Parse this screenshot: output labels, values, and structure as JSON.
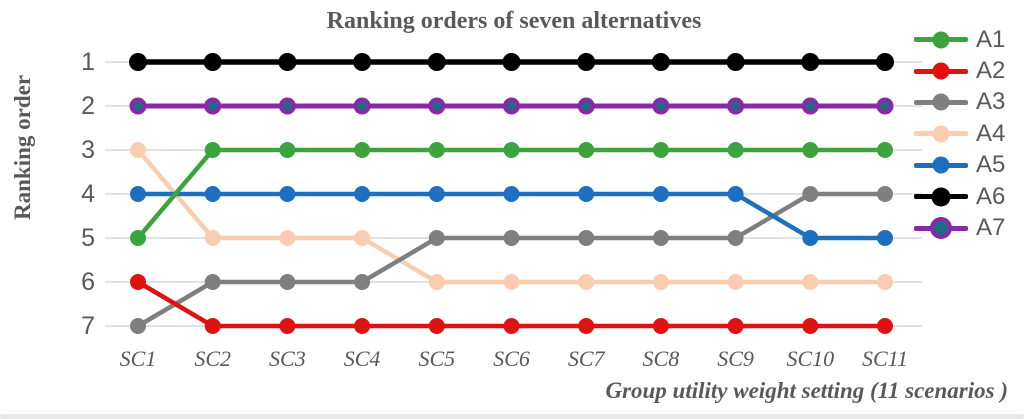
{
  "chart_data": {
    "type": "line",
    "title": "Ranking orders of seven alternatives",
    "xlabel": "Group utility weight setting (11 scenarios )",
    "ylabel": "Ranking order",
    "categories": [
      "SC1",
      "SC2",
      "SC3",
      "SC4",
      "SC5",
      "SC6",
      "SC7",
      "SC8",
      "SC9",
      "SC10",
      "SC11"
    ],
    "y_ticks": [
      1,
      2,
      3,
      4,
      5,
      6,
      7
    ],
    "y_axis_inverted": true,
    "ylim": [
      1,
      7
    ],
    "grid": "horizontal",
    "legend_position": "right",
    "text_color": "#595959",
    "grid_color": "#D9D9D9",
    "bottom_bar_color": "#E8E8E8",
    "series": [
      {
        "name": "A1",
        "color": "#3CA43C",
        "marker_fill": "#3CA43C",
        "marker_radius": 8,
        "line_width": 4.5,
        "values": [
          5,
          3,
          3,
          3,
          3,
          3,
          3,
          3,
          3,
          3,
          3
        ]
      },
      {
        "name": "A2",
        "color": "#E01111",
        "marker_fill": "#E01111",
        "marker_radius": 8,
        "line_width": 4.5,
        "values": [
          6,
          7,
          7,
          7,
          7,
          7,
          7,
          7,
          7,
          7,
          7
        ]
      },
      {
        "name": "A3",
        "color": "#7F7F7F",
        "marker_fill": "#7F7F7F",
        "marker_radius": 8,
        "line_width": 4.5,
        "values": [
          7,
          6,
          6,
          6,
          5,
          5,
          5,
          5,
          5,
          4,
          4
        ]
      },
      {
        "name": "A4",
        "color": "#FACDB0",
        "marker_fill": "#FACDB0",
        "marker_radius": 8,
        "line_width": 4.5,
        "values": [
          3,
          5,
          5,
          5,
          6,
          6,
          6,
          6,
          6,
          6,
          6
        ]
      },
      {
        "name": "A5",
        "color": "#1E6FC0",
        "marker_fill": "#1E6FC0",
        "marker_radius": 8,
        "line_width": 4.5,
        "values": [
          4,
          4,
          4,
          4,
          4,
          4,
          4,
          4,
          4,
          5,
          5
        ]
      },
      {
        "name": "A6",
        "color": "#000000",
        "marker_fill": "#000000",
        "marker_radius": 9,
        "line_width": 5.5,
        "values": [
          1,
          1,
          1,
          1,
          1,
          1,
          1,
          1,
          1,
          1,
          1
        ]
      },
      {
        "name": "A7",
        "color": "#8928A8",
        "marker_fill": "#1F6B85",
        "marker_radius": 6.5,
        "line_width": 5,
        "marker_ring_width": 4,
        "values": [
          2,
          2,
          2,
          2,
          2,
          2,
          2,
          2,
          2,
          2,
          2
        ]
      }
    ],
    "draw_order": [
      "A4",
      "A3",
      "A2",
      "A5",
      "A1",
      "A6",
      "A7"
    ]
  }
}
